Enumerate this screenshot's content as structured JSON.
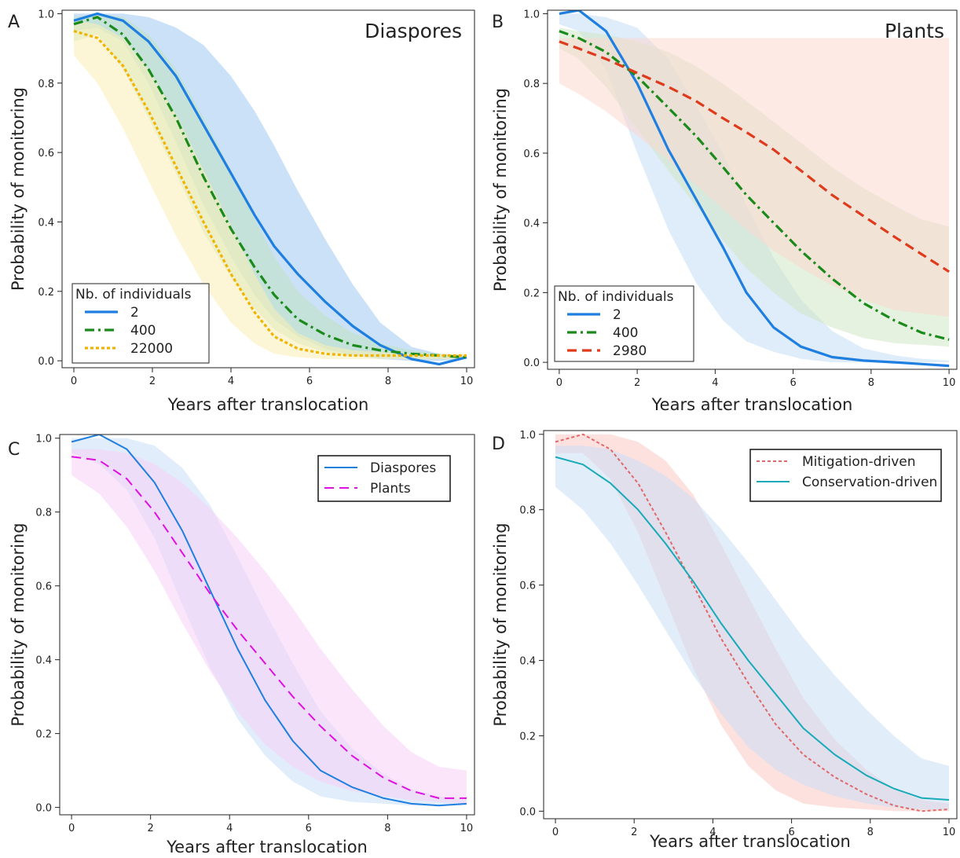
{
  "chart_data": [
    {
      "panel": "A",
      "type": "line",
      "title": "Diaspores",
      "xlabel": "Years after translocation",
      "ylabel": "Probability of monitoring",
      "xlim": [
        -0.3,
        10.2
      ],
      "ylim": [
        -0.02,
        1.01
      ],
      "xticks": [
        0,
        2,
        4,
        6,
        8,
        10
      ],
      "yticks": [
        0.0,
        0.2,
        0.4,
        0.6,
        0.8,
        1.0
      ],
      "ytick_labels": [
        "0.0",
        "0.2",
        "0.4",
        "0.6",
        "0.8",
        "1.0"
      ],
      "legend": {
        "title": "Nb. of individuals",
        "position": "bottom-left"
      },
      "series": [
        {
          "name": "2",
          "color": "#1f7fe0",
          "dash": "solid",
          "x": [
            0,
            0.6,
            1.25,
            1.9,
            2.6,
            3.3,
            4.0,
            4.6,
            5.1,
            5.7,
            6.4,
            7.1,
            7.8,
            8.6,
            9.3,
            10.0
          ],
          "y": [
            0.98,
            1.0,
            0.98,
            0.92,
            0.82,
            0.68,
            0.54,
            0.42,
            0.33,
            0.25,
            0.17,
            0.1,
            0.045,
            0.005,
            -0.01,
            0.01
          ],
          "band_color": "#9ec8f2",
          "upper": [
            1.0,
            1.0,
            1.0,
            0.99,
            0.96,
            0.91,
            0.82,
            0.72,
            0.62,
            0.49,
            0.35,
            0.22,
            0.11,
            0.04,
            0.02,
            0.015
          ],
          "lower": [
            0.95,
            0.96,
            0.92,
            0.8,
            0.63,
            0.45,
            0.3,
            0.19,
            0.12,
            0.07,
            0.035,
            0.015,
            0.005,
            0.0,
            0.0,
            0.005
          ]
        },
        {
          "name": "400",
          "color": "#1a8a1a",
          "dash": "dashdot",
          "x": [
            0,
            0.6,
            1.25,
            1.9,
            2.6,
            3.3,
            4.0,
            4.6,
            5.1,
            5.7,
            6.4,
            7.1,
            7.8,
            8.6,
            9.3,
            10.0
          ],
          "y": [
            0.97,
            0.99,
            0.94,
            0.84,
            0.7,
            0.53,
            0.38,
            0.27,
            0.19,
            0.12,
            0.075,
            0.045,
            0.03,
            0.02,
            0.015,
            0.01
          ],
          "band_color": "#bfe3bf",
          "upper": [
            0.99,
            1.0,
            0.99,
            0.94,
            0.84,
            0.7,
            0.55,
            0.41,
            0.3,
            0.2,
            0.13,
            0.08,
            0.05,
            0.03,
            0.02,
            0.015
          ],
          "lower": [
            0.92,
            0.94,
            0.84,
            0.7,
            0.54,
            0.37,
            0.24,
            0.15,
            0.09,
            0.05,
            0.025,
            0.015,
            0.01,
            0.005,
            0.005,
            0.005
          ]
        },
        {
          "name": "22000",
          "color": "#f0b400",
          "dash": "dotted",
          "x": [
            0,
            0.6,
            1.25,
            1.9,
            2.6,
            3.3,
            4.0,
            4.6,
            5.1,
            5.7,
            6.4,
            7.1,
            7.8,
            8.6,
            9.3,
            10.0
          ],
          "y": [
            0.95,
            0.93,
            0.85,
            0.72,
            0.56,
            0.4,
            0.25,
            0.14,
            0.07,
            0.035,
            0.02,
            0.015,
            0.015,
            0.015,
            0.015,
            0.015
          ],
          "band_color": "#fbefb4",
          "upper": [
            0.98,
            0.97,
            0.93,
            0.84,
            0.71,
            0.55,
            0.39,
            0.25,
            0.15,
            0.08,
            0.045,
            0.03,
            0.025,
            0.02,
            0.02,
            0.02
          ],
          "lower": [
            0.88,
            0.8,
            0.67,
            0.52,
            0.36,
            0.22,
            0.11,
            0.05,
            0.02,
            0.01,
            0.005,
            0.005,
            0.005,
            0.005,
            0.005,
            0.005
          ]
        }
      ]
    },
    {
      "panel": "B",
      "type": "line",
      "title": "Plants",
      "xlabel": "Years after translocation",
      "ylabel": "Probability of monitoring",
      "xlim": [
        -0.3,
        10.2
      ],
      "ylim": [
        -0.02,
        1.01
      ],
      "xticks": [
        0,
        2,
        4,
        6,
        8,
        10
      ],
      "yticks": [
        0.0,
        0.2,
        0.4,
        0.6,
        0.8,
        1.0
      ],
      "ytick_labels": [
        "0.0",
        "0.2",
        "0.4",
        "0.6",
        "0.8",
        "1.0"
      ],
      "legend": {
        "title": "Nb. of individuals",
        "position": "bottom-left"
      },
      "series": [
        {
          "name": "2",
          "color": "#1f7fe0",
          "dash": "solid",
          "x": [
            0,
            0.5,
            1.2,
            2.0,
            2.8,
            3.5,
            4.2,
            4.8,
            5.5,
            6.2,
            7.0,
            7.8,
            8.6,
            9.3,
            10.0
          ],
          "y": [
            1.0,
            1.01,
            0.95,
            0.8,
            0.61,
            0.47,
            0.33,
            0.2,
            0.1,
            0.045,
            0.015,
            0.005,
            0.0,
            -0.005,
            -0.01
          ],
          "band_color": "#c4dcf6",
          "upper": [
            1.0,
            1.0,
            0.99,
            0.96,
            0.87,
            0.74,
            0.6,
            0.45,
            0.3,
            0.18,
            0.09,
            0.04,
            0.02,
            0.01,
            0.005
          ],
          "lower": [
            0.97,
            0.95,
            0.84,
            0.6,
            0.38,
            0.23,
            0.12,
            0.06,
            0.03,
            0.01,
            0.0,
            0.0,
            0.0,
            0.0,
            0.0
          ]
        },
        {
          "name": "400",
          "color": "#1a8a1a",
          "dash": "dashdot",
          "x": [
            0,
            0.5,
            1.2,
            2.0,
            2.8,
            3.5,
            4.2,
            4.8,
            5.5,
            6.2,
            7.0,
            7.8,
            8.6,
            9.3,
            10.0
          ],
          "y": [
            0.95,
            0.93,
            0.89,
            0.82,
            0.73,
            0.65,
            0.56,
            0.48,
            0.4,
            0.32,
            0.24,
            0.17,
            0.12,
            0.085,
            0.065
          ],
          "band_color": "#cfe8c4",
          "upper": [
            0.96,
            0.95,
            0.94,
            0.92,
            0.89,
            0.85,
            0.8,
            0.75,
            0.69,
            0.63,
            0.56,
            0.5,
            0.45,
            0.41,
            0.39
          ],
          "lower": [
            0.9,
            0.87,
            0.79,
            0.67,
            0.55,
            0.45,
            0.35,
            0.27,
            0.2,
            0.14,
            0.1,
            0.07,
            0.055,
            0.05,
            0.045
          ]
        },
        {
          "name": "2980",
          "color": "#e03a1c",
          "dash": "dashed",
          "x": [
            0,
            0.5,
            1.2,
            2.0,
            2.8,
            3.5,
            4.2,
            4.8,
            5.5,
            6.2,
            7.0,
            7.8,
            8.6,
            9.3,
            10.0
          ],
          "y": [
            0.92,
            0.9,
            0.87,
            0.83,
            0.79,
            0.75,
            0.7,
            0.66,
            0.61,
            0.55,
            0.48,
            0.42,
            0.36,
            0.31,
            0.26
          ],
          "band_color": "#fbd9cf",
          "upper": [
            0.93,
            0.93,
            0.93,
            0.93,
            0.93,
            0.93,
            0.93,
            0.93,
            0.93,
            0.93,
            0.93,
            0.93,
            0.93,
            0.93,
            0.93
          ],
          "lower": [
            0.8,
            0.77,
            0.72,
            0.65,
            0.58,
            0.51,
            0.44,
            0.38,
            0.32,
            0.27,
            0.22,
            0.18,
            0.15,
            0.14,
            0.13
          ]
        }
      ]
    },
    {
      "panel": "C",
      "type": "line",
      "title": "",
      "xlabel": "Years after translocation",
      "ylabel": "Probability of monitoring",
      "xlim": [
        -0.3,
        10.2
      ],
      "ylim": [
        -0.02,
        1.01
      ],
      "xticks": [
        0,
        2,
        4,
        6,
        8,
        10
      ],
      "yticks": [
        0.0,
        0.2,
        0.4,
        0.6,
        0.8,
        1.0
      ],
      "ytick_labels": [
        "0.0",
        "0.2",
        "0.4",
        "0.6",
        "0.8",
        "1.0"
      ],
      "legend": {
        "title": "",
        "position": "top-right"
      },
      "series": [
        {
          "name": "Diaspores",
          "color": "#1f7fe0",
          "dash": "solid",
          "x": [
            0,
            0.7,
            1.4,
            2.1,
            2.8,
            3.5,
            4.2,
            4.9,
            5.6,
            6.3,
            7.1,
            7.9,
            8.6,
            9.3,
            10.0
          ],
          "y": [
            0.99,
            1.01,
            0.97,
            0.88,
            0.75,
            0.59,
            0.43,
            0.29,
            0.18,
            0.1,
            0.055,
            0.025,
            0.01,
            0.005,
            0.01
          ],
          "band_color": "#c9dff7",
          "upper": [
            1.0,
            1.0,
            1.0,
            0.98,
            0.92,
            0.82,
            0.68,
            0.53,
            0.39,
            0.26,
            0.16,
            0.09,
            0.05,
            0.03,
            0.02
          ],
          "lower": [
            0.96,
            0.93,
            0.86,
            0.73,
            0.55,
            0.38,
            0.24,
            0.14,
            0.07,
            0.03,
            0.015,
            0.01,
            0.005,
            0.005,
            0.005
          ]
        },
        {
          "name": "Plants",
          "color": "#e010e0",
          "dash": "dashed",
          "x": [
            0,
            0.7,
            1.4,
            2.1,
            2.8,
            3.5,
            4.2,
            4.9,
            5.6,
            6.3,
            7.1,
            7.9,
            8.6,
            9.3,
            10.0
          ],
          "y": [
            0.95,
            0.94,
            0.89,
            0.8,
            0.69,
            0.58,
            0.48,
            0.39,
            0.3,
            0.22,
            0.14,
            0.08,
            0.045,
            0.025,
            0.025
          ],
          "band_color": "#f7cff7",
          "upper": [
            0.97,
            0.97,
            0.96,
            0.93,
            0.88,
            0.81,
            0.73,
            0.64,
            0.54,
            0.43,
            0.32,
            0.22,
            0.15,
            0.11,
            0.1
          ],
          "lower": [
            0.9,
            0.85,
            0.76,
            0.64,
            0.5,
            0.37,
            0.26,
            0.17,
            0.11,
            0.07,
            0.045,
            0.03,
            0.02,
            0.015,
            0.01
          ]
        }
      ]
    },
    {
      "panel": "D",
      "type": "line",
      "title": "",
      "xlabel": "Years after translocation",
      "ylabel": "Probability of monitoring",
      "xlim": [
        -0.3,
        10.2
      ],
      "ylim": [
        -0.02,
        1.01
      ],
      "xticks": [
        0,
        2,
        4,
        6,
        8,
        10
      ],
      "yticks": [
        0.0,
        0.2,
        0.4,
        0.6,
        0.8,
        1.0
      ],
      "ytick_labels": [
        "0.0",
        "0.2",
        "0.4",
        "0.6",
        "0.8",
        "1.0"
      ],
      "legend": {
        "title": "",
        "position": "top-right"
      },
      "series": [
        {
          "name": "Mitigation-driven",
          "color": "#e06868",
          "dash": "dotted",
          "x": [
            0,
            0.7,
            1.4,
            2.1,
            2.8,
            3.5,
            4.2,
            4.9,
            5.6,
            6.3,
            7.1,
            7.9,
            8.6,
            9.3,
            10.0
          ],
          "y": [
            0.98,
            1.0,
            0.96,
            0.87,
            0.74,
            0.6,
            0.46,
            0.34,
            0.23,
            0.15,
            0.09,
            0.045,
            0.015,
            0.0,
            0.005
          ],
          "band_color": "#fac9c4",
          "upper": [
            1.0,
            1.0,
            1.0,
            0.98,
            0.93,
            0.84,
            0.71,
            0.57,
            0.43,
            0.3,
            0.19,
            0.11,
            0.06,
            0.03,
            0.02
          ],
          "lower": [
            0.95,
            0.95,
            0.88,
            0.74,
            0.56,
            0.38,
            0.23,
            0.12,
            0.055,
            0.02,
            0.01,
            0.005,
            0.0,
            0.0,
            0.0
          ]
        },
        {
          "name": "Conservation-driven",
          "color": "#17aab8",
          "dash": "solid",
          "x": [
            0,
            0.7,
            1.4,
            2.1,
            2.8,
            3.5,
            4.2,
            4.9,
            5.6,
            6.3,
            7.1,
            7.9,
            8.6,
            9.3,
            10.0
          ],
          "y": [
            0.94,
            0.92,
            0.87,
            0.8,
            0.71,
            0.61,
            0.5,
            0.4,
            0.31,
            0.22,
            0.15,
            0.095,
            0.06,
            0.035,
            0.03
          ],
          "band_color": "#cbdff5",
          "upper": [
            0.97,
            0.97,
            0.96,
            0.93,
            0.89,
            0.83,
            0.75,
            0.66,
            0.56,
            0.46,
            0.36,
            0.27,
            0.2,
            0.14,
            0.12
          ],
          "lower": [
            0.86,
            0.8,
            0.71,
            0.6,
            0.48,
            0.36,
            0.26,
            0.17,
            0.11,
            0.07,
            0.04,
            0.02,
            0.01,
            0.005,
            0.005
          ]
        }
      ]
    }
  ]
}
